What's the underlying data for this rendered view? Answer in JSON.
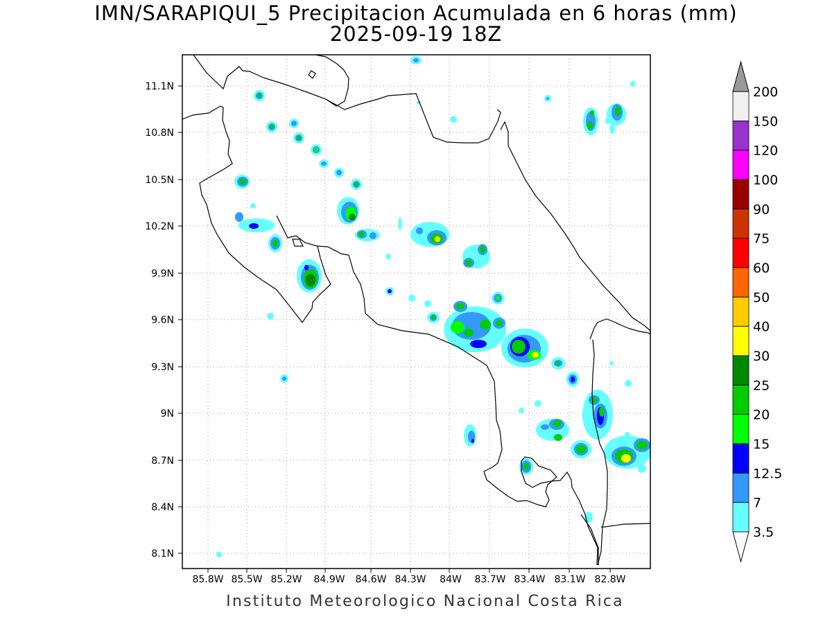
{
  "title": {
    "line1": "IMN/SARAPIQUI_5 Precipitacion Acumulada en 6 horas (mm)",
    "line2": "2025-09-19 18Z"
  },
  "footer": "Instituto Meteorologico Nacional Costa Rica",
  "axes": {
    "lon_labels": [
      "85.8W",
      "85.5W",
      "85.2W",
      "84.9W",
      "84.6W",
      "84.3W",
      "84W",
      "83.7W",
      "83.4W",
      "83.1W",
      "82.8W"
    ],
    "lat_labels": [
      "11.1N",
      "10.8N",
      "10.5N",
      "10.2N",
      "9.9N",
      "9.6N",
      "9.3N",
      "9N",
      "8.7N",
      "8.4N",
      "8.1N"
    ],
    "grid": "dotted"
  },
  "colorbar": {
    "levels": [
      "3.5",
      "7",
      "12.5",
      "15",
      "20",
      "25",
      "30",
      "40",
      "50",
      "60",
      "75",
      "90",
      "100",
      "120",
      "150",
      "200"
    ],
    "colors": [
      "#ffffff",
      "#66ffff",
      "#3399ff",
      "#0000ff",
      "#00ff00",
      "#00cc00",
      "#008800",
      "#ffff00",
      "#ffcc00",
      "#ff6600",
      "#ff0000",
      "#cc3300",
      "#990000",
      "#ff00ff",
      "#9933cc",
      "#f0f0f0",
      "#999999"
    ]
  }
}
